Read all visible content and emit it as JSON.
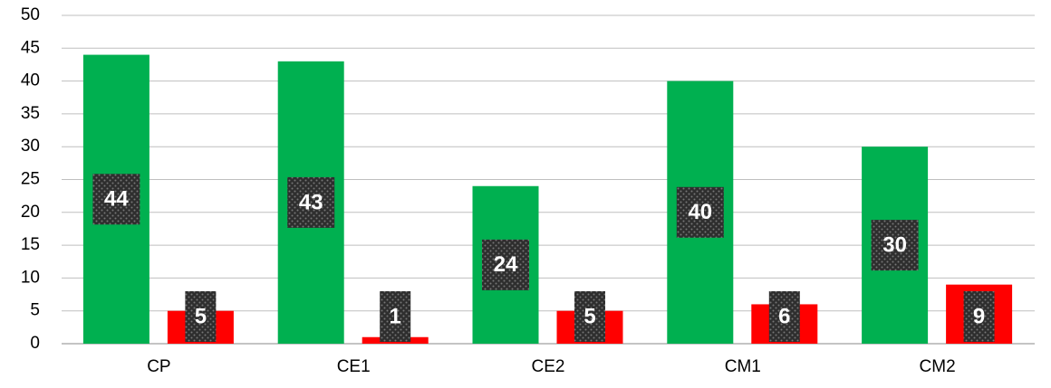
{
  "chart_data": {
    "type": "bar",
    "categories": [
      "CP",
      "CE1",
      "CE2",
      "CM1",
      "CM2"
    ],
    "series": [
      {
        "color": "#00b050",
        "values": [
          44,
          43,
          24,
          40,
          30
        ]
      },
      {
        "color": "#ff0000",
        "values": [
          5,
          1,
          5,
          6,
          9
        ]
      }
    ],
    "ylim": [
      0,
      50
    ],
    "yticks": [
      0,
      5,
      10,
      15,
      20,
      25,
      30,
      35,
      40,
      45,
      50
    ],
    "grid": true
  }
}
